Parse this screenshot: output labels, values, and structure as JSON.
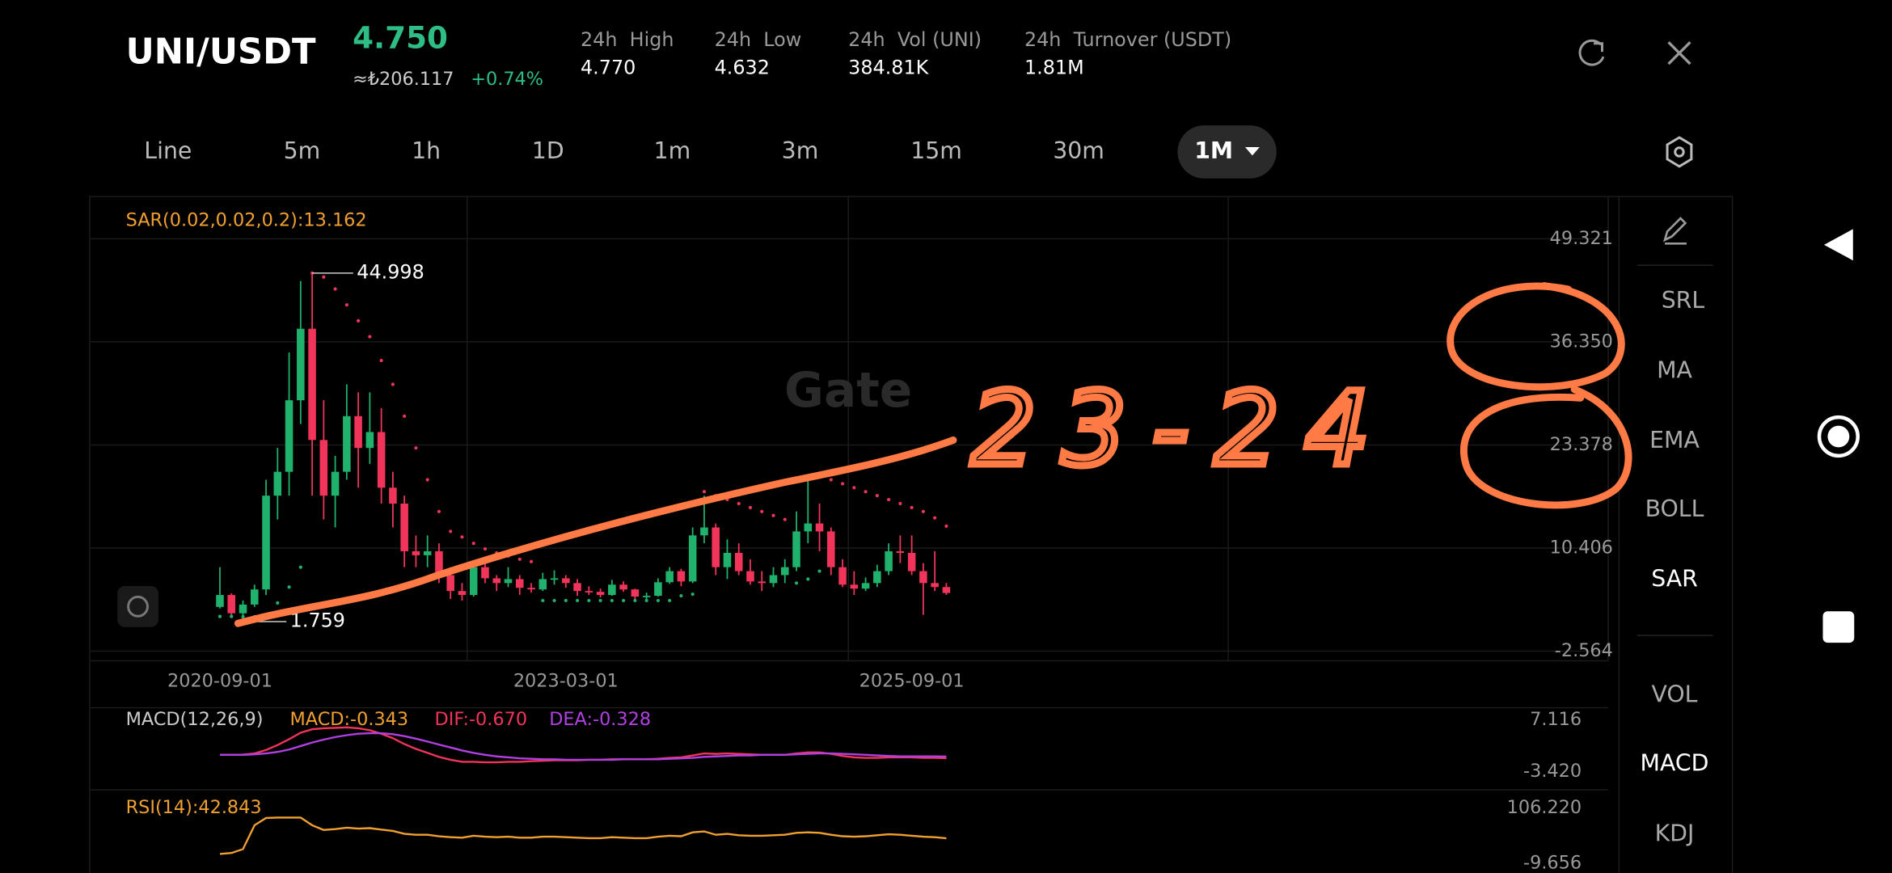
{
  "header": {
    "pair": "UNI/USDT",
    "price": "4.750",
    "fiat": "≈₺206.117",
    "change": "+0.74%",
    "stats": [
      {
        "label": "24h  High",
        "value": "4.770"
      },
      {
        "label": "24h  Low",
        "value": "4.632"
      },
      {
        "label": "24h  Vol (UNI)",
        "value": "384.81K"
      },
      {
        "label": "24h  Turnover (USDT)",
        "value": "1.81M"
      }
    ]
  },
  "tabs": [
    "Line",
    "5m",
    "1h",
    "1D",
    "1m",
    "3m",
    "15m",
    "30m",
    "1M"
  ],
  "selected_tab": 8,
  "chart": {
    "type": "candlestick",
    "ylim": [
      -2.564,
      49.321
    ],
    "yticks": [
      49.321,
      {
        "value": 36.35,
        "label": "36.350"
      },
      23.378,
      10.406,
      -2.564
    ],
    "xticks": [
      "2020-09-01",
      "2023-03-01",
      "2025-09-01"
    ],
    "candles": [
      [
        3.0,
        8.0,
        2.8,
        4.5
      ],
      [
        4.5,
        4.7,
        1.8,
        2.2
      ],
      [
        2.2,
        3.8,
        1.759,
        3.3
      ],
      [
        3.3,
        5.8,
        3.0,
        5.2
      ],
      [
        5.2,
        19,
        4.5,
        17
      ],
      [
        17,
        23,
        14,
        20
      ],
      [
        20,
        35,
        17,
        29
      ],
      [
        29,
        44,
        26,
        38
      ],
      [
        38,
        44.998,
        17,
        24
      ],
      [
        24,
        29,
        14,
        17
      ],
      [
        17,
        22,
        13,
        20
      ],
      [
        20,
        31,
        19,
        27
      ],
      [
        27,
        30,
        18,
        23
      ],
      [
        23,
        30,
        21,
        25
      ],
      [
        25,
        28,
        16,
        18
      ],
      [
        18,
        20,
        13,
        16
      ],
      [
        16,
        17,
        8,
        10
      ],
      [
        10,
        12,
        8,
        9.5
      ],
      [
        9.5,
        12,
        8,
        10
      ],
      [
        10,
        11,
        6,
        7
      ],
      [
        7,
        8,
        4,
        5
      ],
      [
        5,
        6,
        3.8,
        4.5
      ],
      [
        4.5,
        8.8,
        4.3,
        8
      ],
      [
        8,
        9,
        6,
        6.6
      ],
      [
        6.6,
        7,
        5,
        6
      ],
      [
        6,
        8,
        5.5,
        6.5
      ],
      [
        6.5,
        7,
        4.5,
        5.4
      ],
      [
        5.4,
        6,
        4.8,
        5.2
      ],
      [
        5.2,
        7.3,
        5,
        6.5
      ],
      [
        6.5,
        7.6,
        5.8,
        6.6
      ],
      [
        6.6,
        7,
        5.4,
        6
      ],
      [
        6,
        6.5,
        4.4,
        5
      ],
      [
        5,
        5.6,
        4.5,
        4.9
      ],
      [
        4.9,
        5.3,
        4.2,
        4.5
      ],
      [
        4.5,
        6.4,
        4.4,
        5.8
      ],
      [
        5.8,
        6.2,
        4.9,
        5.2
      ],
      [
        5.2,
        5.3,
        4,
        4.3
      ],
      [
        4.3,
        4.8,
        3.9,
        4.4
      ],
      [
        4.4,
        6.6,
        4.3,
        6.1
      ],
      [
        6.1,
        8,
        5.9,
        7.5
      ],
      [
        7.5,
        7.8,
        5.6,
        6.2
      ],
      [
        6.2,
        13,
        6,
        12
      ],
      [
        12,
        17,
        11,
        13
      ],
      [
        13,
        13.5,
        7,
        8
      ],
      [
        8,
        11.5,
        6.5,
        9.8
      ],
      [
        9.8,
        11,
        7,
        7.5
      ],
      [
        7.5,
        9,
        5.8,
        6.2
      ],
      [
        6.2,
        7.5,
        5,
        6
      ],
      [
        6,
        8,
        5.5,
        7
      ],
      [
        7,
        9,
        6,
        8
      ],
      [
        8,
        15,
        7.5,
        12.5
      ],
      [
        12.5,
        19,
        11,
        13.5
      ],
      [
        13.5,
        16,
        10,
        12.5
      ],
      [
        12.5,
        13,
        7,
        8
      ],
      [
        8,
        9,
        5.5,
        5.8
      ],
      [
        5.8,
        7.5,
        4.5,
        5.3
      ],
      [
        5.3,
        6.7,
        5,
        6
      ],
      [
        6,
        8.3,
        5.5,
        7.5
      ],
      [
        7.5,
        11,
        7,
        10
      ],
      [
        10,
        12,
        8.5,
        9.8
      ],
      [
        9.8,
        12,
        7,
        7.5
      ],
      [
        7.5,
        8.5,
        2.0,
        6
      ],
      [
        6,
        10,
        5,
        5.5
      ],
      [
        5.5,
        6,
        4.5,
        4.75
      ]
    ],
    "sar_label": "SAR(0.02,0.02,0.2):13.162",
    "sar": [
      1.8,
      1.8,
      1.76,
      1.76,
      2.0,
      3.5,
      5.5,
      8.0,
      45,
      44.5,
      43,
      41,
      39,
      37,
      34,
      31,
      27,
      23,
      19,
      15,
      12.5,
      11.8,
      11,
      10.3,
      9.8,
      9.4,
      9,
      8.7,
      3.8,
      3.8,
      3.8,
      3.8,
      3.8,
      3.8,
      3.8,
      3.8,
      3.8,
      3.8,
      3.8,
      3.8,
      4.4,
      4.6,
      17.5,
      17,
      16.5,
      16,
      15.5,
      15,
      14.5,
      14,
      6,
      6.5,
      7.5,
      19,
      18.5,
      18,
      17.5,
      17,
      16.5,
      16,
      15.5,
      15,
      14.2,
      13.162
    ],
    "watermark": "Gate",
    "annotation": "23-24"
  },
  "macd": {
    "label": "MACD(12,26,9)",
    "macd_text": "MACD:-0.343",
    "dif_text": "DIF:-0.670",
    "dea_text": "DEA:-0.328",
    "ylim": [
      -3.42,
      7.116
    ],
    "yticks": [
      7.116,
      {
        "value": -3.42,
        "label": "-3.420"
      }
    ],
    "dif": [
      0,
      0,
      0.05,
      0.3,
      1.0,
      2.0,
      3.2,
      4.5,
      5.2,
      5.4,
      5.5,
      5.6,
      5.4,
      5.0,
      4.3,
      3.4,
      2.2,
      1.2,
      0.4,
      -0.4,
      -1.0,
      -1.4,
      -1.4,
      -1.5,
      -1.5,
      -1.4,
      -1.4,
      -1.3,
      -1.2,
      -1.1,
      -1.1,
      -1.1,
      -1.0,
      -1.0,
      -0.9,
      -0.9,
      -0.9,
      -0.9,
      -0.8,
      -0.6,
      -0.5,
      -0.1,
      0.3,
      0.2,
      0.3,
      0.2,
      0.1,
      0.0,
      0.0,
      0.0,
      0.3,
      0.5,
      0.5,
      0.2,
      -0.2,
      -0.5,
      -0.6,
      -0.6,
      -0.5,
      -0.5,
      -0.5,
      -0.6,
      -0.6,
      -0.67
    ],
    "dea": [
      0,
      0,
      0,
      0.1,
      0.3,
      0.6,
      1.1,
      1.8,
      2.5,
      3.1,
      3.6,
      4.0,
      4.3,
      4.4,
      4.4,
      4.2,
      3.8,
      3.3,
      2.7,
      2.1,
      1.5,
      0.9,
      0.4,
      0.0,
      -0.3,
      -0.5,
      -0.7,
      -0.8,
      -0.9,
      -0.9,
      -1.0,
      -1.0,
      -1.0,
      -1.0,
      -1.0,
      -0.9,
      -0.9,
      -0.9,
      -0.9,
      -0.8,
      -0.7,
      -0.6,
      -0.4,
      -0.3,
      -0.2,
      -0.1,
      -0.1,
      0.0,
      0.0,
      0.0,
      0.1,
      0.2,
      0.3,
      0.3,
      0.2,
      0.1,
      0.0,
      -0.1,
      -0.2,
      -0.3,
      -0.3,
      -0.3,
      -0.3,
      -0.328
    ]
  },
  "rsi": {
    "label": "RSI(14):42.843",
    "ylim": [
      -9.656,
      106.22
    ],
    "yticks": [
      {
        "value": 106.22,
        "label": "106.220"
      },
      -9.656
    ],
    "values": [
      10,
      12,
      20,
      70,
      85,
      86,
      86,
      86,
      70,
      60,
      62,
      65,
      63,
      64,
      61,
      58,
      52,
      50,
      50,
      47,
      45,
      44,
      48,
      46,
      45,
      46,
      44,
      44,
      46,
      46,
      45,
      44,
      43,
      43,
      45,
      44,
      43,
      43,
      46,
      48,
      47,
      55,
      57,
      50,
      52,
      49,
      48,
      48,
      49,
      50,
      54,
      55,
      54,
      50,
      47,
      46,
      47,
      49,
      51,
      50,
      48,
      46,
      45,
      42.843
    ]
  },
  "sidebar": [
    "SRL",
    "MA",
    "EMA",
    "BOLL",
    "SAR",
    "VOL",
    "MACD",
    "KDJ"
  ],
  "sidebar_active": [
    4,
    6
  ]
}
